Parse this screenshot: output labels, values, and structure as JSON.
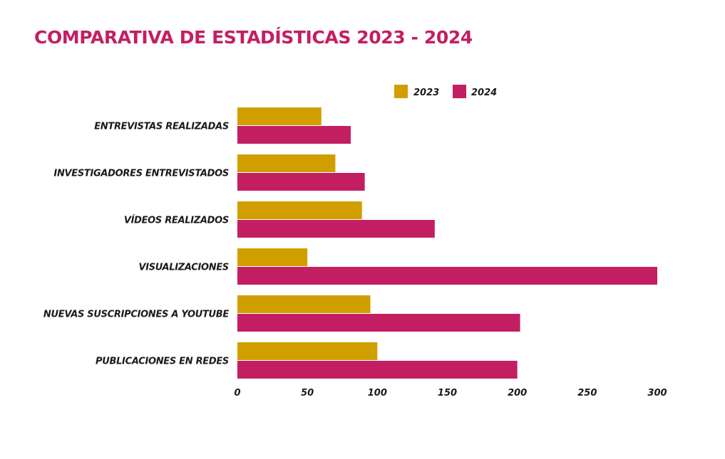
{
  "colors": {
    "title": "#c41e63",
    "series_2023": "#d19e00",
    "series_2024": "#c41e63"
  },
  "chart_data": {
    "type": "bar",
    "orientation": "horizontal",
    "title": "COMPARATIVA DE ESTADÍSTICAS 2023 - 2024",
    "categories": [
      "ENTREVISTAS REALIZADAS",
      "INVESTIGADORES ENTREVISTADOS",
      "VÍDEOS REALIZADOS",
      "VISUALIZACIONES",
      "NUEVAS SUSCRIPCIONES A YOUTUBE",
      "PUBLICACIONES EN REDES"
    ],
    "series": [
      {
        "name": "2023",
        "values": [
          60,
          70,
          89,
          50,
          95,
          100
        ]
      },
      {
        "name": "2024",
        "values": [
          81,
          91,
          141,
          300,
          202,
          200
        ]
      }
    ],
    "xlim": [
      0,
      300
    ],
    "xticks": [
      "0",
      "50",
      "100",
      "150",
      "200",
      "250",
      "300"
    ],
    "legend_position": "top-right",
    "grid": false
  }
}
